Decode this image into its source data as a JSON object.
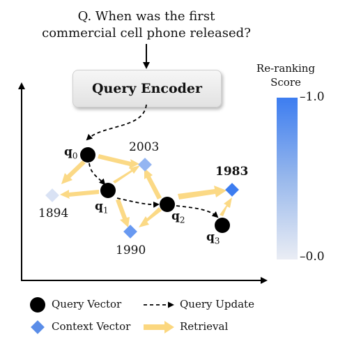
{
  "question": {
    "line1": "Q. When was the first",
    "line2": "commercial cell phone released?"
  },
  "encoder": {
    "label": "Query Encoder"
  },
  "queries": [
    {
      "base": "q",
      "sub": "0"
    },
    {
      "base": "q",
      "sub": "1"
    },
    {
      "base": "q",
      "sub": "2"
    },
    {
      "base": "q",
      "sub": "3"
    }
  ],
  "contexts": [
    {
      "label": "2003",
      "score": 0.5
    },
    {
      "label": "1894",
      "score": 0.1
    },
    {
      "label": "1990",
      "score": 0.75
    },
    {
      "label": "1983",
      "score": 1.0
    }
  ],
  "colorbar": {
    "title_line1": "Re-ranking",
    "title_line2": "Score",
    "max_label": "1.0",
    "min_label": "0.0",
    "top_color": "#3d7df0",
    "bottom_color": "#eaedf4"
  },
  "legend": {
    "query_vector": "Query Vector",
    "query_update": "Query Update",
    "context_vector": "Context Vector",
    "retrieval": "Retrieval"
  },
  "colors": {
    "retrieval_arrow": "#fbd77f",
    "query_node": "#000000",
    "context_max": "#3d7df0"
  }
}
